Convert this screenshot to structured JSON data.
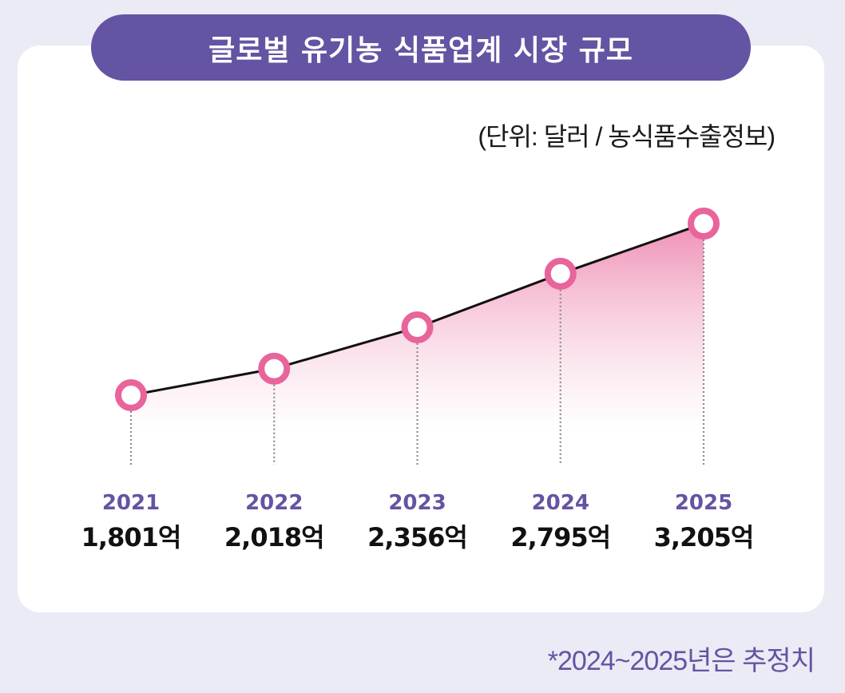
{
  "title": "글로벌 유기농 식품업계 시장 규모",
  "unit_note": "(단위: 달러 / 농식품수출정보)",
  "footnote": "*2024~2025년은 추정치",
  "colors": {
    "background": "#eaebf5",
    "title_bg": "#6553a3",
    "accent_pink": "#e8649a",
    "year_text": "#6553a3",
    "line": "#111111"
  },
  "chart_data": {
    "type": "area",
    "title": "글로벌 유기농 식품업계 시장 규모",
    "categories": [
      "2021",
      "2022",
      "2023",
      "2024",
      "2025"
    ],
    "values": [
      1801,
      2018,
      2356,
      2795,
      3205
    ],
    "value_labels": [
      "1,801억",
      "2,018억",
      "2,356억",
      "2,795억",
      "3,205억"
    ],
    "unit": "(단위: 달러 / 농식품수출정보)",
    "grid": false,
    "legend": "none"
  }
}
